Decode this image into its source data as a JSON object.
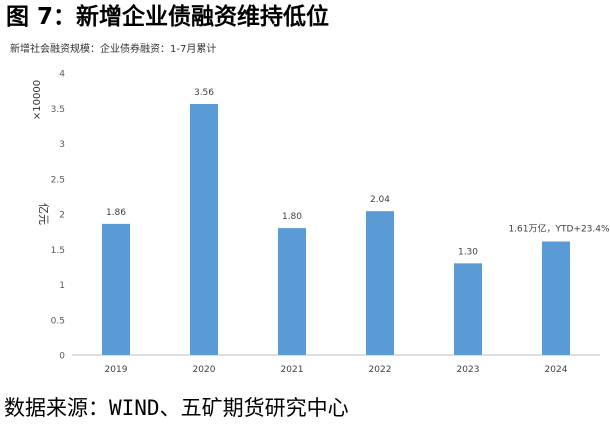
{
  "title": "图 7：新增企业债融资维持低位",
  "subtitle": "新增社会融资规模：企业债券融资：1-7月累计",
  "source": "数据来源：WIND、五矿期货研究中心",
  "chart_data": {
    "type": "bar",
    "categories": [
      "2019",
      "2020",
      "2021",
      "2022",
      "2023",
      "2024"
    ],
    "values": [
      1.86,
      3.56,
      1.8,
      2.04,
      1.3,
      1.61
    ],
    "data_labels": [
      "1.86",
      "3.56",
      "1.80",
      "2.04",
      "1.30",
      "1.61万亿，YTD+23.4%"
    ],
    "ylabel": "亿元",
    "yscale_label": "×10000",
    "ylim": [
      0,
      4
    ],
    "yticks": [
      "0",
      "0.5",
      "1",
      "1.5",
      "2",
      "2.5",
      "3",
      "3.5",
      "4"
    ],
    "grid": false,
    "bar_color": "#5b9bd5"
  }
}
